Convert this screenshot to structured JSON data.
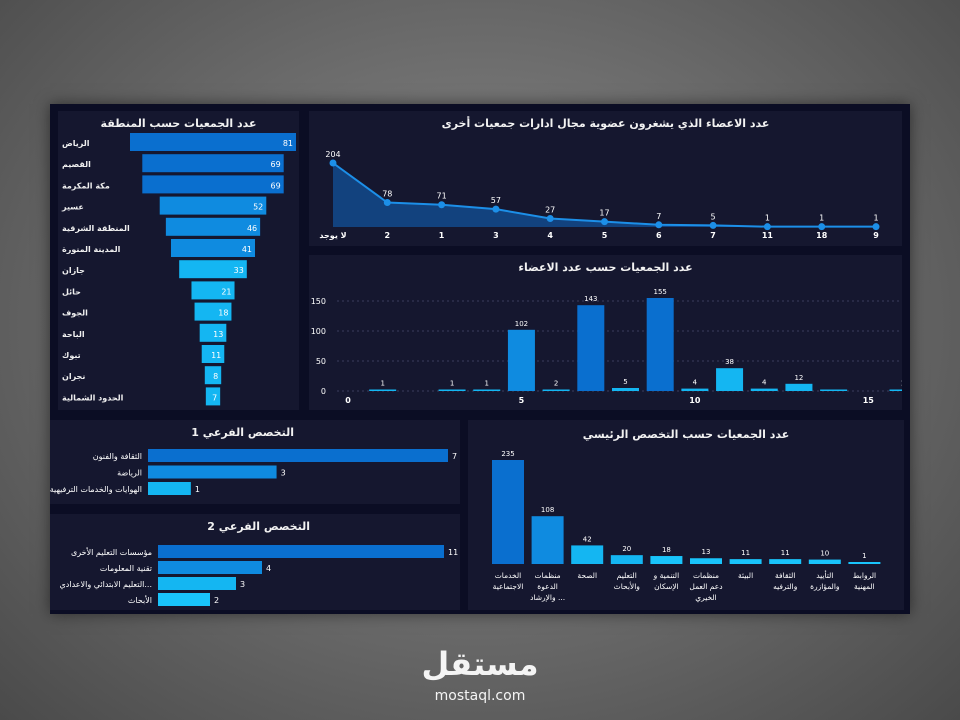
{
  "watermark": {
    "arabic": "مستقل",
    "latin": "mostaql.com"
  },
  "chart_data": [
    {
      "id": "region",
      "type": "bar",
      "orientation": "horizontal-funnel",
      "title": "عدد الجمعيات حسب المنطقة",
      "categories": [
        "الرياض",
        "القصيم",
        "مكة المكرمة",
        "عسير",
        "المنطقة الشرقية",
        "المدينة المنورة",
        "جازان",
        "حائل",
        "الجوف",
        "الباحة",
        "تبوك",
        "نجران",
        "الحدود الشمالية"
      ],
      "values": [
        81,
        69,
        69,
        52,
        46,
        41,
        33,
        21,
        18,
        13,
        11,
        8,
        7
      ]
    },
    {
      "id": "other_boards",
      "type": "area",
      "title": "عدد الاعضاء الذي يشغرون عضوية مجال ادارات جمعيات أخرى",
      "categories": [
        "لا يوجد",
        "2",
        "1",
        "3",
        "4",
        "5",
        "6",
        "7",
        "11",
        "18",
        "9"
      ],
      "values": [
        204,
        78,
        71,
        57,
        27,
        17,
        7,
        5,
        1,
        1,
        1
      ]
    },
    {
      "id": "members",
      "type": "bar",
      "title": "عدد الجمعيات حسب عدد الاعضاء",
      "x": [
        1,
        3,
        4,
        5,
        6,
        7,
        8,
        9,
        10,
        11,
        12,
        13,
        14,
        16
      ],
      "values": [
        1,
        1,
        1,
        102,
        2,
        143,
        5,
        155,
        4,
        38,
        4,
        12,
        0,
        1
      ],
      "labels": [
        "1",
        "1",
        "1",
        "102",
        "2",
        "143",
        "5",
        "155",
        "4",
        "38",
        "4",
        "12",
        "",
        "1"
      ],
      "xticks": [
        "0",
        "5",
        "10",
        "15"
      ],
      "yticks": [
        "0",
        "50",
        "100",
        "150"
      ],
      "xlim": [
        0,
        16
      ],
      "ylim": [
        0,
        165
      ],
      "grid": true
    },
    {
      "id": "sub1",
      "type": "bar",
      "orientation": "horizontal",
      "title": "التخصص الفرعي 1",
      "categories": [
        "الثقافة والفنون",
        "الرياضة",
        "الهوايات والخدمات الترفيهية"
      ],
      "values": [
        7,
        3,
        1
      ]
    },
    {
      "id": "sub2",
      "type": "bar",
      "orientation": "horizontal",
      "title": "التخصص الفرعي 2",
      "categories": [
        "مؤسسات التعليم الأخرى",
        "تقنية المعلومات",
        "التعليم الابتدائي والاعدادي...",
        "الأبحاث"
      ],
      "values": [
        11,
        4,
        3,
        2
      ]
    },
    {
      "id": "main_spec",
      "type": "bar",
      "title": "عدد الجمعيات حسب التخصص الرئيسي",
      "categories": [
        [
          "الخدمات",
          "الاجتماعية"
        ],
        [
          "منظمات",
          "الدعوة",
          "والإرشاد ..."
        ],
        [
          "الصحة"
        ],
        [
          "التعليم",
          "والأبحاث"
        ],
        [
          "التنمية و",
          "الإسكان"
        ],
        [
          "منظمات",
          "دعم العمل",
          "الخيري"
        ],
        [
          "البيئة"
        ],
        [
          "الثقافة",
          "والترفيه"
        ],
        [
          "التأييد",
          "والمؤازرة"
        ],
        [
          "الروابط",
          "المهنية"
        ]
      ],
      "values": [
        235,
        108,
        42,
        20,
        18,
        13,
        11,
        11,
        10,
        1
      ]
    }
  ]
}
